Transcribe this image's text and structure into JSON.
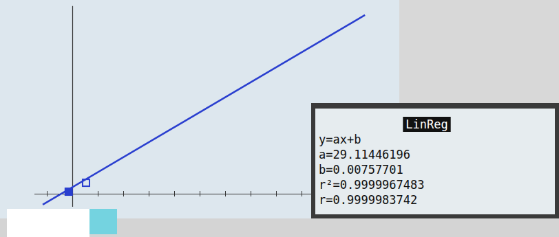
{
  "chart_data": {
    "type": "line",
    "annotations": [
      "LinReg",
      "y=ax+b",
      "a=29.11446196",
      "b=0.00757701",
      "r²=0.9999967483",
      "r=0.9999983742"
    ],
    "xlim": [
      -1.5,
      12.7
    ],
    "ylim": [
      -0.5,
      7.4
    ],
    "xticks": [
      -1,
      0,
      1,
      2,
      3,
      4,
      5,
      6,
      7,
      8,
      9
    ],
    "yticks": [],
    "tick_labels": false,
    "grid": false,
    "series": [
      {
        "type": "line",
        "color": "#2a3fcf",
        "line_style": "solid",
        "x": [
          -1.16,
          11.49
        ],
        "values": [
          -0.43,
          7.03
        ]
      },
      {
        "type": "scatter",
        "color": "#2a3fcf",
        "marker": "square",
        "x": [
          -0.14,
          0.54
        ],
        "values": [
          0.08,
          0.43
        ]
      }
    ]
  }
}
